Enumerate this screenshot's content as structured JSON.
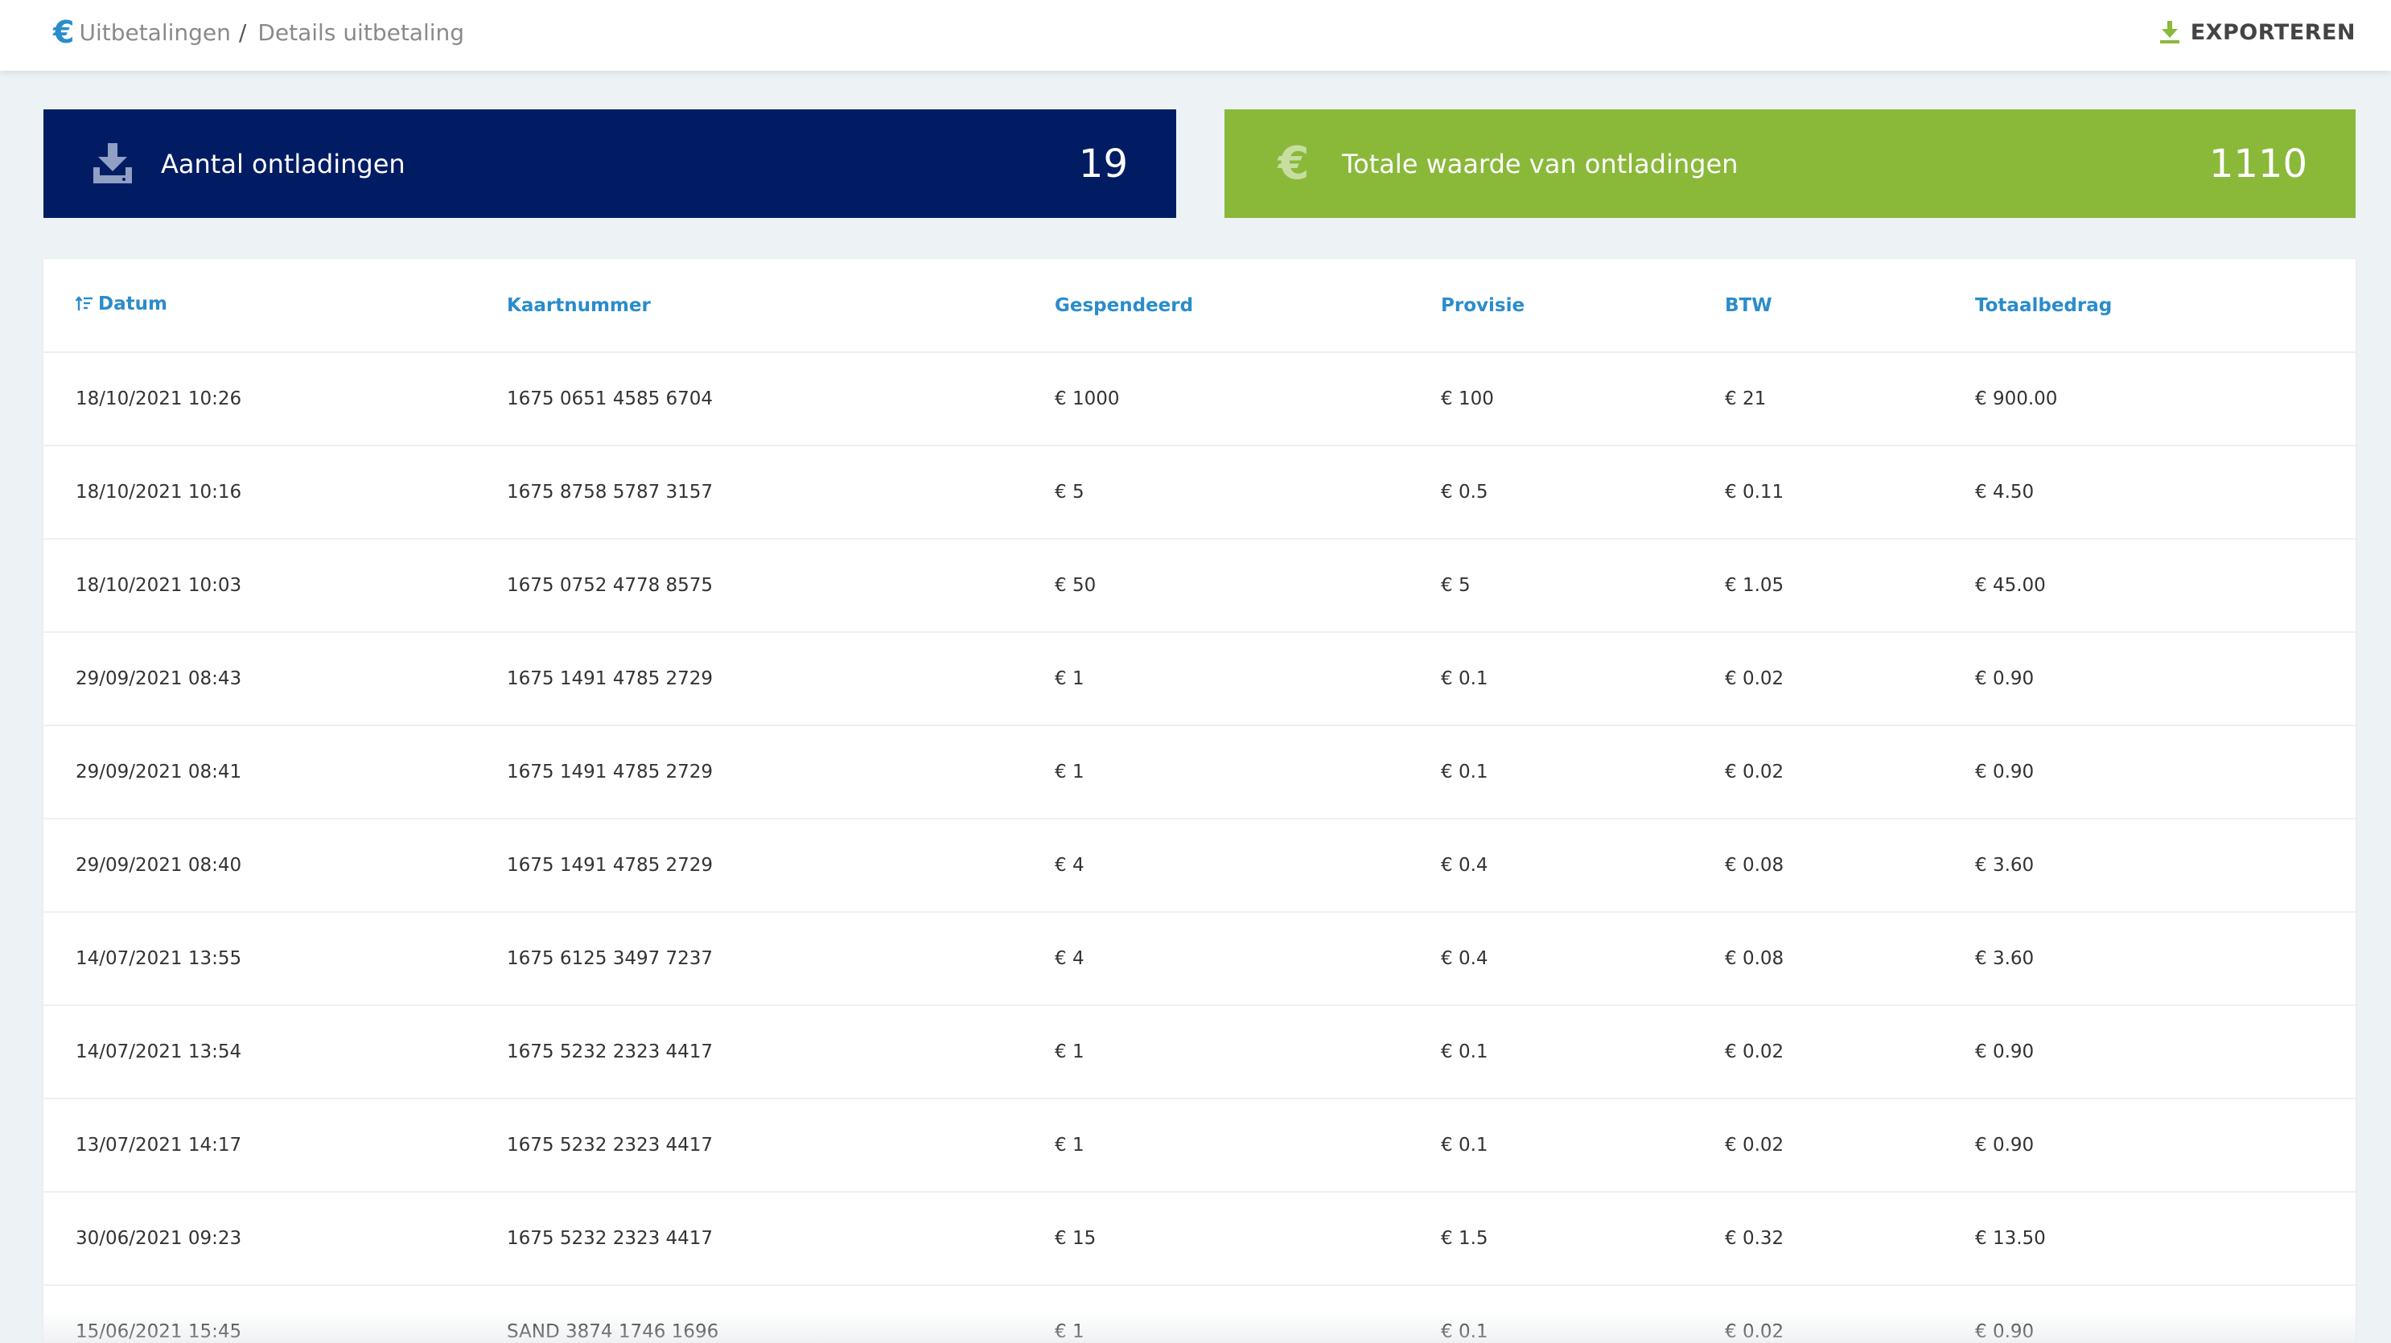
{
  "breadcrumb": {
    "euro_symbol": "€",
    "parent": "Uitbetalingen",
    "separator": "/",
    "current": "Details uitbetaling"
  },
  "toolbar": {
    "export_label": "EXPORTEREN",
    "export_icon": "download-icon"
  },
  "colors": {
    "accent_blue": "#2a8ccb",
    "card_navy": "#021c64",
    "card_green": "#8ab93a",
    "export_icon_green": "#8ab93a"
  },
  "stats": {
    "count_card": {
      "icon": "download-icon",
      "label": "Aantal ontladingen",
      "value": "19"
    },
    "total_card": {
      "icon": "euro-icon",
      "icon_glyph": "€",
      "label": "Totale waarde van ontladingen",
      "value": "1110"
    }
  },
  "table": {
    "columns": [
      "Datum",
      "Kaartnummer",
      "Gespendeerd",
      "Provisie",
      "BTW",
      "Totaalbedrag"
    ],
    "sort_column": "Datum",
    "rows": [
      [
        "18/10/2021 10:26",
        "1675 0651 4585 6704",
        "€ 1000",
        "€ 100",
        "€ 21",
        "€ 900.00"
      ],
      [
        "18/10/2021 10:16",
        "1675 8758 5787 3157",
        "€ 5",
        "€ 0.5",
        "€ 0.11",
        "€ 4.50"
      ],
      [
        "18/10/2021 10:03",
        "1675 0752 4778 8575",
        "€ 50",
        "€ 5",
        "€ 1.05",
        "€ 45.00"
      ],
      [
        "29/09/2021 08:43",
        "1675 1491 4785 2729",
        "€ 1",
        "€ 0.1",
        "€ 0.02",
        "€ 0.90"
      ],
      [
        "29/09/2021 08:41",
        "1675 1491 4785 2729",
        "€ 1",
        "€ 0.1",
        "€ 0.02",
        "€ 0.90"
      ],
      [
        "29/09/2021 08:40",
        "1675 1491 4785 2729",
        "€ 4",
        "€ 0.4",
        "€ 0.08",
        "€ 3.60"
      ],
      [
        "14/07/2021 13:55",
        "1675 6125 3497 7237",
        "€ 4",
        "€ 0.4",
        "€ 0.08",
        "€ 3.60"
      ],
      [
        "14/07/2021 13:54",
        "1675 5232 2323 4417",
        "€ 1",
        "€ 0.1",
        "€ 0.02",
        "€ 0.90"
      ],
      [
        "13/07/2021 14:17",
        "1675 5232 2323 4417",
        "€ 1",
        "€ 0.1",
        "€ 0.02",
        "€ 0.90"
      ],
      [
        "30/06/2021 09:23",
        "1675 5232 2323 4417",
        "€ 15",
        "€ 1.5",
        "€ 0.32",
        "€ 13.50"
      ],
      [
        "15/06/2021 15:45",
        "SAND 3874 1746 1696",
        "€ 1",
        "€ 0.1",
        "€ 0.02",
        "€ 0.90"
      ]
    ]
  }
}
